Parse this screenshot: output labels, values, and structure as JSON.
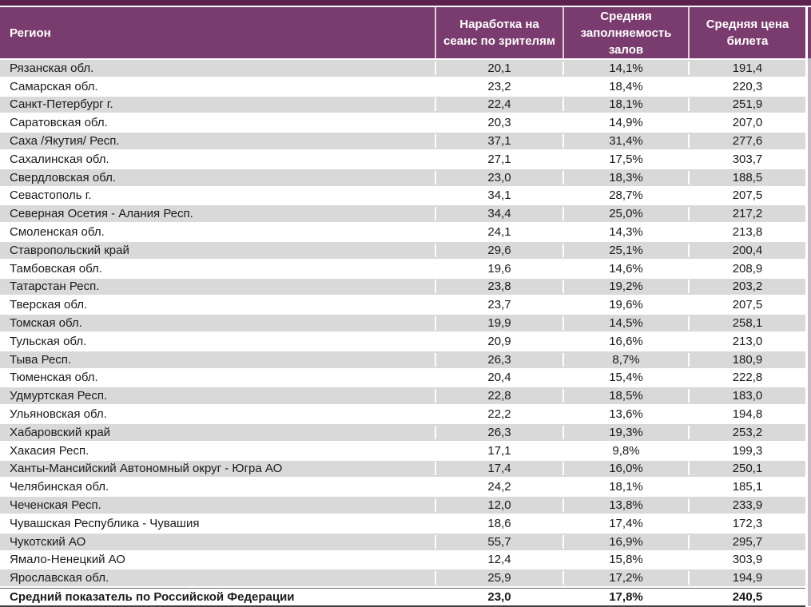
{
  "colors": {
    "top_bar": "#5d2150",
    "header_bg": "#7a3c6e",
    "header_text": "#ffffff",
    "stripe_row": "#d9d9d9",
    "body_text": "#1a1a1a",
    "right_strip": "#c9bcc8"
  },
  "table": {
    "columns": {
      "region": "Регион",
      "col2": "Наработка на сеанс по зрителям",
      "col3": "Средняя заполняемость залов",
      "col4": "Средняя цена билета"
    },
    "rows": [
      {
        "region": "Рязанская обл.",
        "v1": "20,1",
        "v2": "14,1%",
        "v3": "191,4"
      },
      {
        "region": "Самарская обл.",
        "v1": "23,2",
        "v2": "18,4%",
        "v3": "220,3"
      },
      {
        "region": "Санкт-Петербург г.",
        "v1": "22,4",
        "v2": "18,1%",
        "v3": "251,9"
      },
      {
        "region": "Саратовская обл.",
        "v1": "20,3",
        "v2": "14,9%",
        "v3": "207,0"
      },
      {
        "region": "Саха /Якутия/ Респ.",
        "v1": "37,1",
        "v2": "31,4%",
        "v3": "277,6"
      },
      {
        "region": "Сахалинская обл.",
        "v1": "27,1",
        "v2": "17,5%",
        "v3": "303,7"
      },
      {
        "region": "Свердловская обл.",
        "v1": "23,0",
        "v2": "18,3%",
        "v3": "188,5"
      },
      {
        "region": "Севастополь г.",
        "v1": "34,1",
        "v2": "28,7%",
        "v3": "207,5"
      },
      {
        "region": "Северная Осетия - Алания Респ.",
        "v1": "34,4",
        "v2": "25,0%",
        "v3": "217,2"
      },
      {
        "region": "Смоленская обл.",
        "v1": "24,1",
        "v2": "14,3%",
        "v3": "213,8"
      },
      {
        "region": "Ставропольский край",
        "v1": "29,6",
        "v2": "25,1%",
        "v3": "200,4"
      },
      {
        "region": "Тамбовская обл.",
        "v1": "19,6",
        "v2": "14,6%",
        "v3": "208,9"
      },
      {
        "region": "Татарстан Респ.",
        "v1": "23,8",
        "v2": "19,2%",
        "v3": "203,2"
      },
      {
        "region": "Тверская обл.",
        "v1": "23,7",
        "v2": "19,6%",
        "v3": "207,5"
      },
      {
        "region": "Томская обл.",
        "v1": "19,9",
        "v2": "14,5%",
        "v3": "258,1"
      },
      {
        "region": "Тульская обл.",
        "v1": "20,9",
        "v2": "16,6%",
        "v3": "213,0"
      },
      {
        "region": "Тыва Респ.",
        "v1": "26,3",
        "v2": "8,7%",
        "v3": "180,9"
      },
      {
        "region": "Тюменская обл.",
        "v1": "20,4",
        "v2": "15,4%",
        "v3": "222,8"
      },
      {
        "region": "Удмуртская Респ.",
        "v1": "22,8",
        "v2": "18,5%",
        "v3": "183,0"
      },
      {
        "region": "Ульяновская обл.",
        "v1": "22,2",
        "v2": "13,6%",
        "v3": "194,8"
      },
      {
        "region": "Хабаровский край",
        "v1": "26,3",
        "v2": "19,3%",
        "v3": "253,2"
      },
      {
        "region": "Хакасия Респ.",
        "v1": "17,1",
        "v2": "9,8%",
        "v3": "199,3"
      },
      {
        "region": "Ханты-Мансийский Автономный округ - Югра АО",
        "v1": "17,4",
        "v2": "16,0%",
        "v3": "250,1"
      },
      {
        "region": "Челябинская обл.",
        "v1": "24,2",
        "v2": "18,1%",
        "v3": "185,1"
      },
      {
        "region": "Чеченская Респ.",
        "v1": "12,0",
        "v2": "13,8%",
        "v3": "233,9"
      },
      {
        "region": "Чувашская Республика - Чувашия",
        "v1": "18,6",
        "v2": "17,4%",
        "v3": "172,3"
      },
      {
        "region": "Чукотский АО",
        "v1": "55,7",
        "v2": "16,9%",
        "v3": "295,7"
      },
      {
        "region": "Ямало-Ненецкий АО",
        "v1": "12,4",
        "v2": "15,8%",
        "v3": "303,9"
      },
      {
        "region": "Ярославская обл.",
        "v1": "25,9",
        "v2": "17,2%",
        "v3": "194,9"
      }
    ],
    "summary": {
      "region": "Средний показатель по Российской Федерации",
      "v1": "23,0",
      "v2": "17,8%",
      "v3": "240,5"
    }
  }
}
